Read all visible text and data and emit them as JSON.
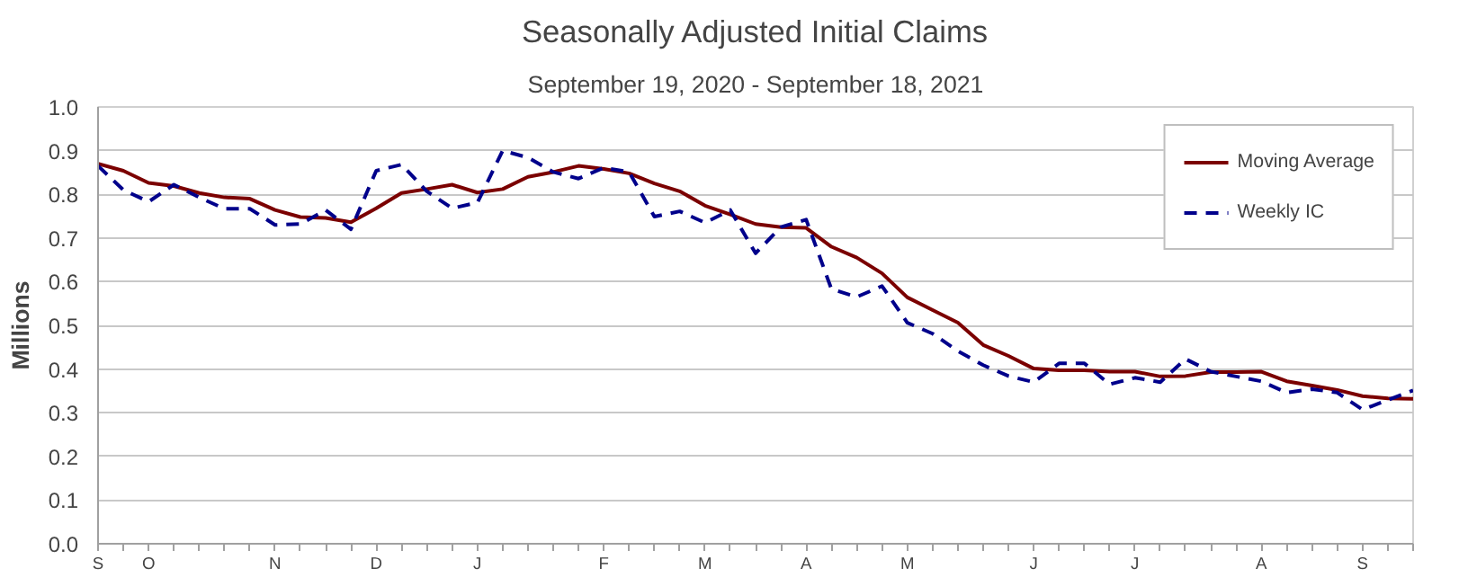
{
  "chart_data": {
    "type": "line",
    "title": "Seasonally Adjusted Initial Claims",
    "subtitle": "September 19, 2020 - September 18, 2021",
    "ylabel": "Millions",
    "categories": [
      "S",
      null,
      "O",
      null,
      null,
      null,
      null,
      "N",
      null,
      null,
      null,
      "D",
      null,
      null,
      null,
      "J",
      null,
      null,
      null,
      null,
      "F",
      null,
      null,
      null,
      "M",
      null,
      null,
      null,
      "A",
      null,
      null,
      null,
      "M",
      null,
      null,
      null,
      null,
      "J",
      null,
      null,
      null,
      "J",
      null,
      null,
      null,
      null,
      "A",
      null,
      null,
      null,
      "S",
      null,
      null
    ],
    "series": [
      {
        "name": "Moving Average",
        "color": "#7b0000",
        "line_style": "solid",
        "values": [
          0.87,
          0.854,
          0.826,
          0.819,
          0.803,
          0.793,
          0.79,
          0.764,
          0.748,
          0.746,
          0.736,
          0.768,
          0.803,
          0.812,
          0.822,
          0.804,
          0.812,
          0.84,
          0.851,
          0.865,
          0.858,
          0.848,
          0.825,
          0.807,
          0.774,
          0.754,
          0.732,
          0.725,
          0.723,
          0.68,
          0.655,
          0.619,
          0.564,
          0.535,
          0.506,
          0.455,
          0.43,
          0.401,
          0.397,
          0.397,
          0.394,
          0.394,
          0.383,
          0.384,
          0.393,
          0.393,
          0.394,
          0.372,
          0.362,
          0.352,
          0.338,
          0.333,
          0.332
        ]
      },
      {
        "name": "Weekly IC",
        "color": "#00008b",
        "line_style": "dashed",
        "values": [
          0.865,
          0.81,
          0.783,
          0.822,
          0.793,
          0.767,
          0.767,
          0.73,
          0.732,
          0.764,
          0.72,
          0.854,
          0.868,
          0.807,
          0.768,
          0.781,
          0.9,
          0.884,
          0.851,
          0.836,
          0.861,
          0.851,
          0.749,
          0.761,
          0.735,
          0.764,
          0.665,
          0.725,
          0.742,
          0.583,
          0.565,
          0.59,
          0.506,
          0.481,
          0.441,
          0.409,
          0.384,
          0.37,
          0.413,
          0.413,
          0.365,
          0.38,
          0.37,
          0.423,
          0.394,
          0.383,
          0.372,
          0.346,
          0.354,
          0.346,
          0.307,
          0.329,
          0.351
        ]
      }
    ],
    "ylim": [
      0,
      1.0
    ],
    "yticks": [
      {
        "value": 0,
        "label": "0.0"
      },
      {
        "value": 0.1,
        "label": "0.1"
      },
      {
        "value": 0.2,
        "label": "0.2"
      },
      {
        "value": 0.3,
        "label": "0.3"
      },
      {
        "value": 0.4,
        "label": "0.4"
      },
      {
        "value": 0.5,
        "label": "0.5"
      },
      {
        "value": 0.6,
        "label": "0.6"
      },
      {
        "value": 0.7,
        "label": "0.7"
      },
      {
        "value": 0.8,
        "label": "0.8"
      },
      {
        "value": 0.9,
        "label": "0.9"
      },
      {
        "value": 1.0,
        "label": "1.0"
      }
    ],
    "grid": "y",
    "legend": "top right",
    "marker": "none"
  }
}
